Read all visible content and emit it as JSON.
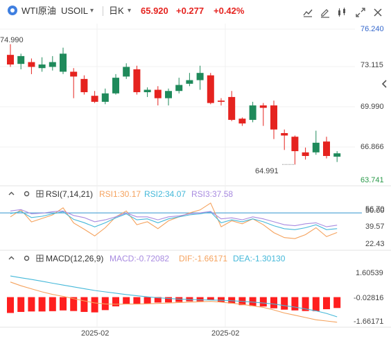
{
  "header": {
    "symbol_name": "WTI原油",
    "symbol_code": "USOIL",
    "symbol_dropdown": "▾",
    "period": "日K",
    "period_dropdown": "▾",
    "last_price": "65.920",
    "change": "+0.277",
    "change_pct": "+0.42%",
    "icons": [
      "indicator-icon",
      "edit-icon",
      "compare-icon",
      "fullscreen-icon",
      "close-icon"
    ]
  },
  "colors": {
    "up": "#e5231f",
    "down": "#1f8a5b",
    "axis_blue": "#3366cc",
    "rsi1": "#f5a25d",
    "rsi2": "#44b8d9",
    "rsi3": "#a88be0",
    "rsi_line": "#5aa8d8",
    "dif": "#f5a25d",
    "dea": "#44b8d9",
    "macd_bar": "#ff1f1f"
  },
  "chart_data": [
    {
      "type": "candlestick",
      "name": "main",
      "ylim": [
        63.741,
        76.24
      ],
      "y_ticks": [
        "76.240",
        "73.115",
        "69.990",
        "66.866",
        "63.741"
      ],
      "x_ticks": [
        "2025-02",
        "2025-02"
      ],
      "annotations": {
        "high_label": "74.990",
        "low_label": "64.991"
      },
      "candles": [
        {
          "o": 74.1,
          "c": 73.3,
          "h": 74.99,
          "l": 73.1
        },
        {
          "o": 73.35,
          "c": 74.0,
          "h": 74.2,
          "l": 72.9
        },
        {
          "o": 73.5,
          "c": 73.1,
          "h": 73.8,
          "l": 72.5
        },
        {
          "o": 73.0,
          "c": 73.3,
          "h": 73.9,
          "l": 72.7
        },
        {
          "o": 73.1,
          "c": 73.5,
          "h": 74.0,
          "l": 72.8
        },
        {
          "o": 72.7,
          "c": 74.2,
          "h": 74.7,
          "l": 72.5
        },
        {
          "o": 72.7,
          "c": 72.3,
          "h": 73.0,
          "l": 70.5
        },
        {
          "o": 72.1,
          "c": 71.0,
          "h": 72.4,
          "l": 70.8
        },
        {
          "o": 70.7,
          "c": 70.2,
          "h": 71.1,
          "l": 70.1
        },
        {
          "o": 70.2,
          "c": 70.9,
          "h": 71.3,
          "l": 70.0
        },
        {
          "o": 70.9,
          "c": 72.2,
          "h": 72.5,
          "l": 70.8
        },
        {
          "o": 72.3,
          "c": 73.1,
          "h": 73.4,
          "l": 72.1
        },
        {
          "o": 72.9,
          "c": 71.0,
          "h": 73.2,
          "l": 70.8
        },
        {
          "o": 71.0,
          "c": 71.2,
          "h": 71.4,
          "l": 70.6
        },
        {
          "o": 71.2,
          "c": 70.5,
          "h": 71.5,
          "l": 69.9
        },
        {
          "o": 70.5,
          "c": 71.1,
          "h": 71.3,
          "l": 69.9
        },
        {
          "o": 71.1,
          "c": 71.6,
          "h": 72.2,
          "l": 70.9
        },
        {
          "o": 71.7,
          "c": 72.0,
          "h": 72.6,
          "l": 71.5
        },
        {
          "o": 72.0,
          "c": 72.6,
          "h": 73.2,
          "l": 71.2
        },
        {
          "o": 72.4,
          "c": 70.1,
          "h": 72.6,
          "l": 70.0
        },
        {
          "o": 70.3,
          "c": 70.2,
          "h": 70.5,
          "l": 69.9
        },
        {
          "o": 70.6,
          "c": 68.7,
          "h": 71.1,
          "l": 68.6
        },
        {
          "o": 68.8,
          "c": 68.4,
          "h": 68.9,
          "l": 68.2
        },
        {
          "o": 68.7,
          "c": 69.9,
          "h": 70.2,
          "l": 68.5
        },
        {
          "o": 69.9,
          "c": 69.7,
          "h": 70.1,
          "l": 68.2
        },
        {
          "o": 69.9,
          "c": 67.9,
          "h": 70.3,
          "l": 67.1
        },
        {
          "o": 67.6,
          "c": 67.4,
          "h": 67.9,
          "l": 66.2
        },
        {
          "o": 67.3,
          "c": 66.1,
          "h": 67.4,
          "l": 64.991
        },
        {
          "o": 66.0,
          "c": 65.7,
          "h": 66.4,
          "l": 65.4
        },
        {
          "o": 66.0,
          "c": 66.8,
          "h": 67.8,
          "l": 65.8
        },
        {
          "o": 66.9,
          "c": 65.7,
          "h": 67.3,
          "l": 65.5
        },
        {
          "o": 65.643,
          "c": 65.92,
          "h": 66.1,
          "l": 65.2
        }
      ]
    },
    {
      "type": "line",
      "name": "rsi",
      "label": "RSI(7,14,21)",
      "legend": [
        "RSI1:30.17",
        "RSI2:34.07",
        "RSI3:37.58"
      ],
      "ylim": [
        15,
        62
      ],
      "y_ticks": [
        "56.70",
        "50.00",
        "39.57",
        "22.43"
      ],
      "reference_line": 50.0,
      "series": [
        {
          "name": "RSI1",
          "values": [
            46.0,
            53.1,
            40.9,
            44.4,
            48.0,
            55.1,
            39.8,
            33.5,
            26.7,
            35.0,
            46.0,
            52.0,
            38.1,
            41.0,
            34.1,
            42.0,
            46.0,
            50.0,
            53.0,
            60.0,
            36.0,
            42.0,
            39.0,
            44.0,
            38.0,
            30.0,
            25.0,
            24.0,
            28.0,
            35.0,
            26.0,
            30.17
          ]
        },
        {
          "name": "RSI2",
          "values": [
            49.3,
            51.4,
            45.3,
            46.6,
            49.1,
            51.2,
            43.5,
            40.1,
            35.8,
            40.0,
            45.0,
            49.0,
            43.0,
            44.0,
            40.0,
            44.0,
            46.0,
            48.0,
            49.0,
            51.0,
            40.0,
            43.0,
            41.0,
            44.0,
            41.0,
            37.0,
            34.0,
            33.0,
            35.0,
            38.0,
            33.0,
            34.07
          ]
        },
        {
          "name": "RSI3",
          "values": [
            52.0,
            53.4,
            49.1,
            49.7,
            51.2,
            52.0,
            47.4,
            45.2,
            41.0,
            43.0,
            46.0,
            50.0,
            46.0,
            46.0,
            43.0,
            46.0,
            47.0,
            49.0,
            50.0,
            51.5,
            44.0,
            45.0,
            43.0,
            46.0,
            44.0,
            41.0,
            38.0,
            37.0,
            39.0,
            40.0,
            36.0,
            37.58
          ]
        }
      ]
    },
    {
      "type": "bar",
      "name": "macd",
      "label": "MACD(12,26,9)",
      "legend": [
        "MACD:-0.72082",
        "DIF:-1.66171",
        "DEA:-1.30130"
      ],
      "ylim": [
        -1.9,
        2.0
      ],
      "y_ticks": [
        "1.60539",
        "-0.02816",
        "-1.66171"
      ],
      "macd_values": [
        -1.05,
        -0.98,
        -0.95,
        -0.95,
        -0.93,
        -0.88,
        -0.92,
        -0.98,
        -1.01,
        -0.86,
        -0.61,
        -0.45,
        -0.48,
        -0.44,
        -0.36,
        -0.35,
        -0.32,
        -0.28,
        -0.28,
        -0.2,
        -0.32,
        -0.42,
        -0.53,
        -0.59,
        -0.62,
        -0.74,
        -0.83,
        -0.88,
        -0.92,
        -0.93,
        -0.8,
        -0.72082
      ],
      "series": [
        {
          "name": "DIF",
          "values": [
            1.0,
            0.75,
            0.55,
            0.35,
            0.18,
            0.05,
            -0.1,
            -0.25,
            -0.38,
            -0.45,
            -0.47,
            -0.46,
            -0.46,
            -0.44,
            -0.42,
            -0.39,
            -0.36,
            -0.33,
            -0.31,
            -0.28,
            -0.33,
            -0.4,
            -0.48,
            -0.58,
            -0.68,
            -0.85,
            -1.05,
            -1.2,
            -1.35,
            -1.5,
            -1.58,
            -1.66171
          ]
        },
        {
          "name": "DEA",
          "values": [
            1.4,
            1.28,
            1.17,
            1.05,
            0.92,
            0.8,
            0.68,
            0.56,
            0.44,
            0.35,
            0.26,
            0.17,
            0.09,
            0.02,
            -0.04,
            -0.09,
            -0.13,
            -0.16,
            -0.18,
            -0.19,
            -0.21,
            -0.24,
            -0.28,
            -0.33,
            -0.39,
            -0.46,
            -0.56,
            -0.66,
            -0.78,
            -0.91,
            -1.08,
            -1.3013
          ]
        }
      ]
    }
  ]
}
